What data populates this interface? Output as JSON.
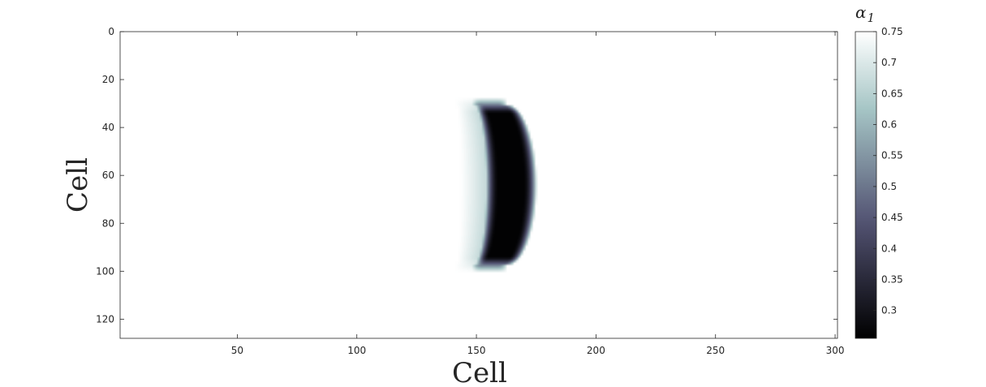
{
  "chart_data": {
    "type": "heatmap",
    "title": "",
    "xlabel": "Cell",
    "ylabel": "Cell",
    "xlim": [
      1,
      301
    ],
    "ylim": [
      0,
      128
    ],
    "y_reversed": true,
    "xticks": [
      50,
      100,
      150,
      200,
      250,
      300
    ],
    "yticks": [
      0,
      20,
      40,
      60,
      80,
      100,
      120
    ],
    "colorbar": {
      "label_symbol": "α",
      "label_subscript": "1",
      "range": [
        0.255,
        0.75
      ],
      "ticks": [
        0.3,
        0.35,
        0.4,
        0.45,
        0.5,
        0.55,
        0.6,
        0.65,
        0.7,
        0.75
      ],
      "colormap": "bone"
    },
    "background_value": 0.75,
    "feature": {
      "shape": "crescent",
      "min_value": 0.26,
      "x_range": [
        147,
        176
      ],
      "y_range": [
        30,
        98
      ],
      "center_row": 64
    },
    "grid": false
  }
}
